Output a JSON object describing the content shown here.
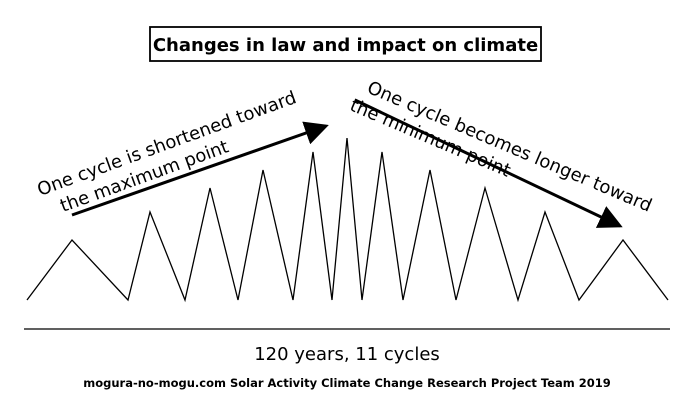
{
  "title": "Changes in law and impact on climate",
  "annotation_left": {
    "line1": "One cycle is shortened toward",
    "line2": "the maximum point"
  },
  "annotation_right": {
    "line1": "One cycle becomes longer toward",
    "line2": "the minimum point"
  },
  "caption": "120 years, 11 cycles",
  "footer": "mogura-no-mogu.com  Solar Activity Climate Change Research Project Team 2019",
  "colors": {
    "ink": "#000000",
    "background": "#ffffff"
  }
}
